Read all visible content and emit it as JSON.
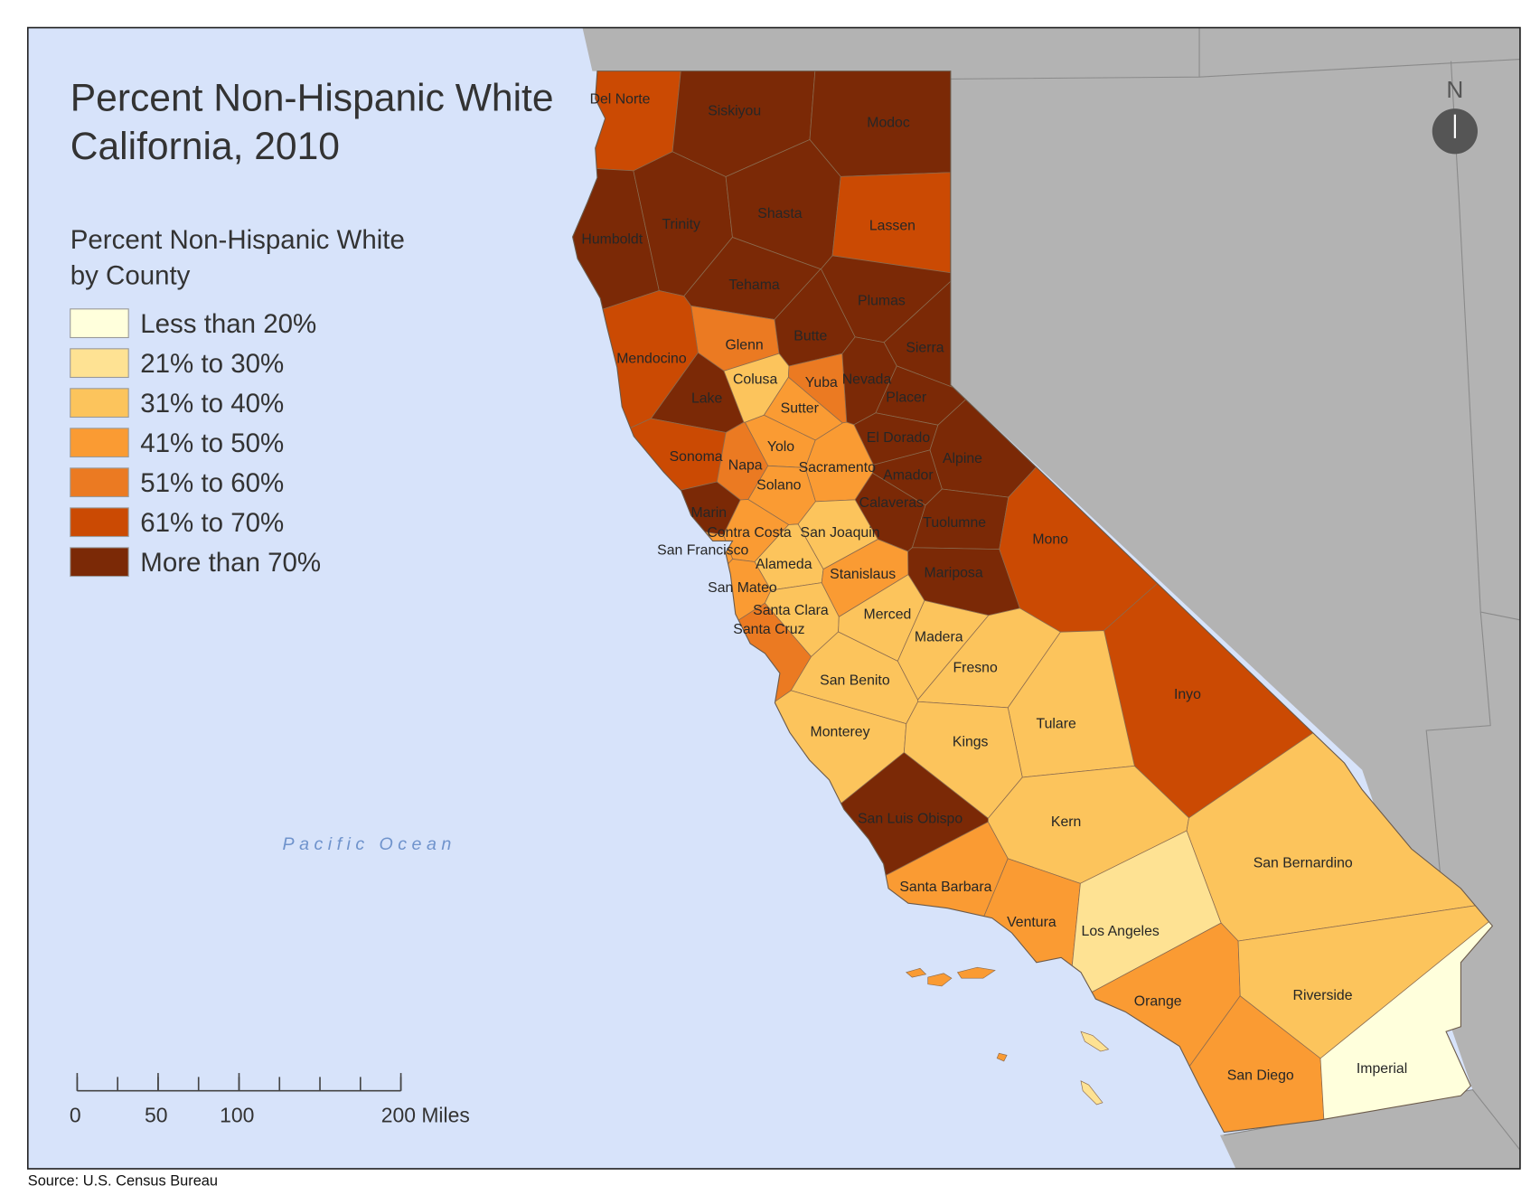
{
  "map": {
    "title": [
      "Percent Non-Hispanic White",
      "California, 2010"
    ],
    "legend": {
      "title": [
        "Percent Non-Hispanic White",
        "by County"
      ],
      "items": [
        {
          "label": "Less than 20%",
          "color": "#ffffdc"
        },
        {
          "label": "21% to 30%",
          "color": "#fee293"
        },
        {
          "label": "31% to 40%",
          "color": "#fcc45c"
        },
        {
          "label": "41% to 50%",
          "color": "#fa9b33"
        },
        {
          "label": "51% to 60%",
          "color": "#eb7a22"
        },
        {
          "label": "61% to 70%",
          "color": "#cb4a03"
        },
        {
          "label": "More than 70%",
          "color": "#7b2906"
        }
      ]
    },
    "counties": [
      {
        "name": "Del Norte",
        "color": "#cb4a03"
      },
      {
        "name": "Siskiyou",
        "color": "#7b2906"
      },
      {
        "name": "Modoc",
        "color": "#7b2906"
      },
      {
        "name": "Humboldt",
        "color": "#7b2906"
      },
      {
        "name": "Trinity",
        "color": "#7b2906"
      },
      {
        "name": "Shasta",
        "color": "#7b2906"
      },
      {
        "name": "Lassen",
        "color": "#cb4a03"
      },
      {
        "name": "Tehama",
        "color": "#7b2906"
      },
      {
        "name": "Plumas",
        "color": "#7b2906"
      },
      {
        "name": "Glenn",
        "color": "#eb7a22"
      },
      {
        "name": "Butte",
        "color": "#7b2906"
      },
      {
        "name": "Sierra",
        "color": "#7b2906"
      },
      {
        "name": "Mendocino",
        "color": "#cb4a03"
      },
      {
        "name": "Colusa",
        "color": "#fcc45c"
      },
      {
        "name": "Yuba",
        "color": "#eb7a22"
      },
      {
        "name": "Nevada",
        "color": "#7b2906"
      },
      {
        "name": "Lake",
        "color": "#7b2906"
      },
      {
        "name": "Sutter",
        "color": "#fa9b33"
      },
      {
        "name": "Placer",
        "color": "#7b2906"
      },
      {
        "name": "El Dorado",
        "color": "#7b2906"
      },
      {
        "name": "Yolo",
        "color": "#fa9b33"
      },
      {
        "name": "Sonoma",
        "color": "#cb4a03"
      },
      {
        "name": "Napa",
        "color": "#eb7a22"
      },
      {
        "name": "Sacramento",
        "color": "#fa9b33"
      },
      {
        "name": "Alpine",
        "color": "#7b2906"
      },
      {
        "name": "Amador",
        "color": "#7b2906"
      },
      {
        "name": "Solano",
        "color": "#fa9b33"
      },
      {
        "name": "Calaveras",
        "color": "#7b2906"
      },
      {
        "name": "Marin",
        "color": "#7b2906"
      },
      {
        "name": "Tuolumne",
        "color": "#7b2906"
      },
      {
        "name": "Contra Costa",
        "color": "#fa9b33"
      },
      {
        "name": "San Joaquin",
        "color": "#fcc45c"
      },
      {
        "name": "Mono",
        "color": "#cb4a03"
      },
      {
        "name": "San Francisco",
        "color": "#fa9b33"
      },
      {
        "name": "Alameda",
        "color": "#fcc45c"
      },
      {
        "name": "Stanislaus",
        "color": "#fa9b33"
      },
      {
        "name": "Mariposa",
        "color": "#7b2906"
      },
      {
        "name": "San Mateo",
        "color": "#fa9b33"
      },
      {
        "name": "Santa Clara",
        "color": "#fcc45c"
      },
      {
        "name": "Merced",
        "color": "#fcc45c"
      },
      {
        "name": "Santa Cruz",
        "color": "#eb7a22"
      },
      {
        "name": "Madera",
        "color": "#fcc45c"
      },
      {
        "name": "Fresno",
        "color": "#fcc45c"
      },
      {
        "name": "San Benito",
        "color": "#fcc45c"
      },
      {
        "name": "Inyo",
        "color": "#cb4a03"
      },
      {
        "name": "Tulare",
        "color": "#fcc45c"
      },
      {
        "name": "Monterey",
        "color": "#fcc45c"
      },
      {
        "name": "Kings",
        "color": "#fcc45c"
      },
      {
        "name": "San Luis Obispo",
        "color": "#7b2906"
      },
      {
        "name": "Kern",
        "color": "#fcc45c"
      },
      {
        "name": "San Bernardino",
        "color": "#fcc45c"
      },
      {
        "name": "Santa Barbara",
        "color": "#fa9b33"
      },
      {
        "name": "Ventura",
        "color": "#fa9b33"
      },
      {
        "name": "Los Angeles",
        "color": "#fee293"
      },
      {
        "name": "Orange",
        "color": "#fa9b33"
      },
      {
        "name": "Riverside",
        "color": "#fcc45c"
      },
      {
        "name": "San Diego",
        "color": "#fa9b33"
      },
      {
        "name": "Imperial",
        "color": "#ffffdc"
      }
    ],
    "ocean_label": "Pacific Ocean",
    "north": "N",
    "scale_bar": {
      "ticks": [
        0,
        50,
        100,
        {
          "value": 200,
          "label": "200 Miles"
        }
      ]
    },
    "source": "Source: U.S. Census Bureau"
  }
}
